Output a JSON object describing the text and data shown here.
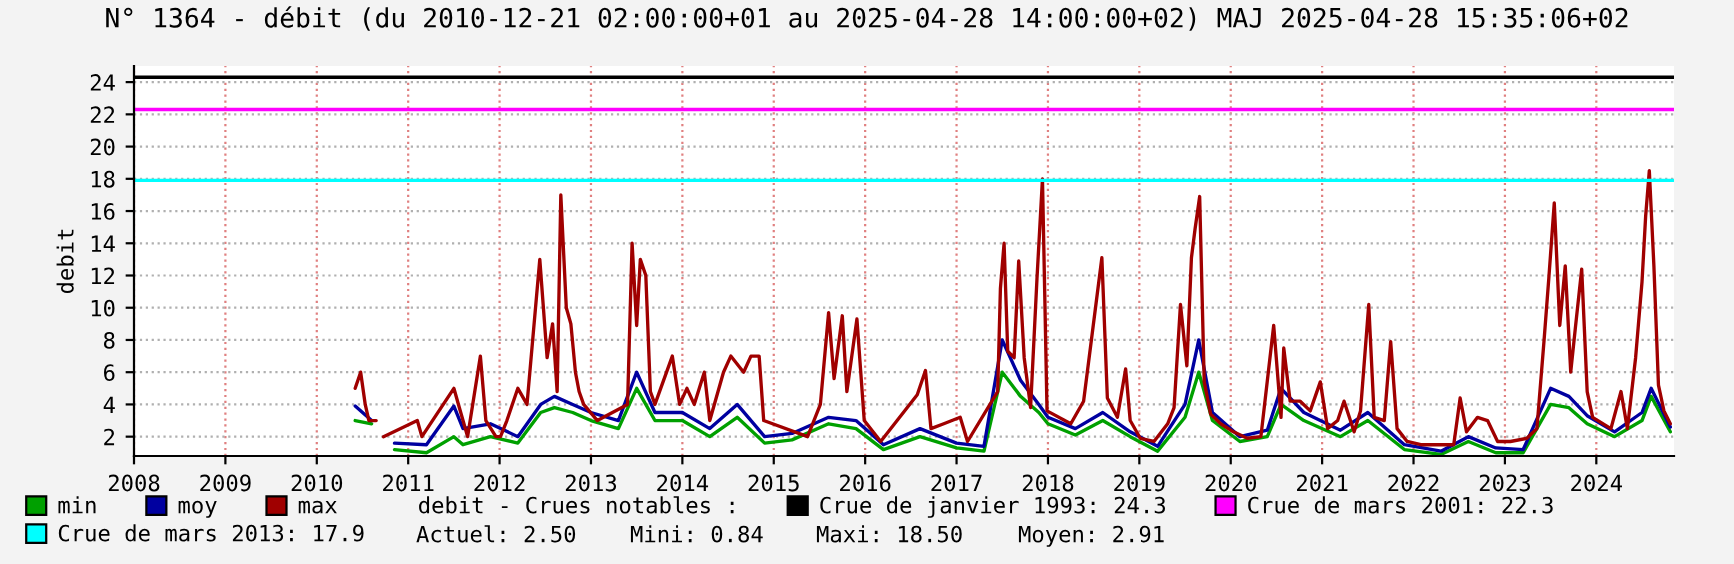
{
  "chart_data": {
    "type": "line",
    "title": "N° 1364 - débit (du 2010-12-21 02:00:00+01 au 2025-04-28 14:00:00+02) MAJ 2025-04-28 15:35:06+02",
    "ylabel": "debit",
    "legend_title": "debit - Crues notables :",
    "xlim": [
      2008,
      2024.85
    ],
    "xticks": [
      2008,
      2009,
      2010,
      2011,
      2012,
      2013,
      2014,
      2015,
      2016,
      2017,
      2018,
      2019,
      2020,
      2021,
      2022,
      2023,
      2024
    ],
    "ylim": [
      0.8,
      25
    ],
    "yticks": [
      2,
      4,
      6,
      8,
      10,
      12,
      14,
      16,
      18,
      20,
      22,
      24
    ],
    "grid": true,
    "legend": "bottom",
    "marker": "none",
    "line_style": "solid",
    "series": [
      {
        "name": "min",
        "color": "#00a000",
        "x": [
          2010.42,
          2010.6,
          2010.7,
          2010.85,
          2011.2,
          2011.5,
          2011.6,
          2011.9,
          2012.2,
          2012.45,
          2012.6,
          2012.8,
          2013.0,
          2013.3,
          2013.5,
          2013.7,
          2014.0,
          2014.3,
          2014.6,
          2014.9,
          2015.2,
          2015.6,
          2015.9,
          2016.2,
          2016.6,
          2017.0,
          2017.3,
          2017.5,
          2017.7,
          2017.9,
          2018.0,
          2018.3,
          2018.6,
          2018.9,
          2019.2,
          2019.5,
          2019.65,
          2019.8,
          2020.1,
          2020.4,
          2020.55,
          2020.8,
          2021.2,
          2021.5,
          2021.9,
          2022.3,
          2022.6,
          2022.9,
          2023.2,
          2023.5,
          2023.7,
          2023.9,
          2024.2,
          2024.5,
          2024.6,
          2024.81
        ],
        "values": [
          3.0,
          2.8,
          null,
          1.2,
          1.0,
          2.0,
          1.5,
          2.0,
          1.6,
          3.5,
          3.8,
          3.5,
          3.0,
          2.5,
          5.0,
          3.0,
          3.0,
          2.0,
          3.2,
          1.6,
          1.8,
          2.8,
          2.5,
          1.2,
          2.0,
          1.3,
          1.1,
          6.0,
          4.5,
          3.5,
          2.8,
          2.1,
          3.0,
          2.0,
          1.1,
          3.2,
          6.0,
          3.0,
          1.7,
          2.0,
          4.0,
          3.0,
          2.0,
          3.0,
          1.2,
          0.9,
          1.7,
          1.0,
          1.0,
          4.0,
          3.8,
          2.8,
          2.0,
          3.0,
          4.5,
          2.3
        ]
      },
      {
        "name": "moy",
        "color": "#0000a0",
        "x": [
          2010.42,
          2010.6,
          2010.7,
          2010.85,
          2011.2,
          2011.5,
          2011.6,
          2011.9,
          2012.2,
          2012.45,
          2012.6,
          2012.8,
          2013.0,
          2013.3,
          2013.5,
          2013.7,
          2014.0,
          2014.3,
          2014.6,
          2014.9,
          2015.2,
          2015.6,
          2015.9,
          2016.2,
          2016.6,
          2017.0,
          2017.3,
          2017.5,
          2017.7,
          2017.9,
          2018.0,
          2018.3,
          2018.6,
          2018.9,
          2019.2,
          2019.5,
          2019.65,
          2019.8,
          2020.1,
          2020.4,
          2020.55,
          2020.8,
          2021.2,
          2021.5,
          2021.9,
          2022.3,
          2022.6,
          2022.9,
          2023.2,
          2023.5,
          2023.7,
          2023.9,
          2024.2,
          2024.5,
          2024.6,
          2024.81
        ],
        "values": [
          3.9,
          3.0,
          null,
          1.6,
          1.5,
          3.9,
          2.5,
          2.8,
          2.0,
          4.0,
          4.5,
          4.0,
          3.5,
          3.0,
          6.0,
          3.5,
          3.5,
          2.5,
          4.0,
          2.0,
          2.2,
          3.2,
          3.0,
          1.5,
          2.5,
          1.6,
          1.4,
          8.0,
          5.5,
          4.0,
          3.2,
          2.5,
          3.5,
          2.3,
          1.4,
          4.0,
          8.0,
          3.5,
          2.0,
          2.4,
          5.0,
          3.5,
          2.4,
          3.5,
          1.5,
          1.1,
          2.0,
          1.3,
          1.2,
          5.0,
          4.5,
          3.3,
          2.3,
          3.5,
          5.0,
          2.6
        ]
      },
      {
        "name": "max",
        "color": "#a00000",
        "x": [
          2010.42,
          2010.48,
          2010.53,
          2010.57,
          2010.65,
          2010.7,
          2010.73,
          2011.1,
          2011.15,
          2011.5,
          2011.55,
          2011.6,
          2011.65,
          2011.79,
          2011.85,
          2011.96,
          2012.01,
          2012.08,
          2012.2,
          2012.3,
          2012.44,
          2012.52,
          2012.58,
          2012.63,
          2012.67,
          2012.73,
          2012.78,
          2012.83,
          2012.87,
          2012.92,
          2013.07,
          2013.4,
          2013.45,
          2013.5,
          2013.54,
          2013.6,
          2013.65,
          2013.7,
          2013.89,
          2013.97,
          2014.05,
          2014.13,
          2014.24,
          2014.3,
          2014.45,
          2014.53,
          2014.67,
          2014.75,
          2014.84,
          2014.89,
          2015.37,
          2015.51,
          2015.6,
          2015.66,
          2015.75,
          2015.8,
          2015.91,
          2015.99,
          2016.17,
          2016.57,
          2016.66,
          2016.72,
          2016.86,
          2017.04,
          2017.12,
          2017.45,
          2017.48,
          2017.52,
          2017.56,
          2017.63,
          2017.68,
          2017.74,
          2017.81,
          2017.88,
          2017.94,
          2017.99,
          2018.25,
          2018.39,
          2018.59,
          2018.65,
          2018.76,
          2018.85,
          2018.9,
          2019.01,
          2019.16,
          2019.31,
          2019.38,
          2019.45,
          2019.52,
          2019.57,
          2019.61,
          2019.66,
          2019.71,
          2019.78,
          2019.89,
          2020.03,
          2020.18,
          2020.33,
          2020.47,
          2020.55,
          2020.58,
          2020.65,
          2020.76,
          2020.87,
          2020.98,
          2021.06,
          2021.17,
          2021.24,
          2021.35,
          2021.42,
          2021.51,
          2021.57,
          2021.68,
          2021.75,
          2021.82,
          2021.93,
          2022.08,
          2022.44,
          2022.51,
          2022.58,
          2022.7,
          2022.81,
          2022.92,
          2023.06,
          2023.24,
          2023.35,
          2023.43,
          2023.48,
          2023.54,
          2023.6,
          2023.66,
          2023.72,
          2023.77,
          2023.84,
          2023.9,
          2023.96,
          2024.16,
          2024.27,
          2024.34,
          2024.43,
          2024.5,
          2024.54,
          2024.58,
          2024.63,
          2024.68,
          2024.74,
          2024.81
        ],
        "values": [
          5.0,
          6.0,
          4.0,
          3.0,
          3.0,
          null,
          2.0,
          3.0,
          2.0,
          5.0,
          4.0,
          3.0,
          2.0,
          7.0,
          3.0,
          2.0,
          2.0,
          3.0,
          5.0,
          4.0,
          13.0,
          6.9,
          9.0,
          4.8,
          17.0,
          10.0,
          9.0,
          6.0,
          4.8,
          4.0,
          3.0,
          4.0,
          14.0,
          8.9,
          13.0,
          12.0,
          4.8,
          4.0,
          7.0,
          4.0,
          5.0,
          4.0,
          6.0,
          3.0,
          6.0,
          7.0,
          6.0,
          7.0,
          7.0,
          3.0,
          2.0,
          4.0,
          9.7,
          5.6,
          9.5,
          4.8,
          9.3,
          3.0,
          1.7,
          4.6,
          6.1,
          2.5,
          2.8,
          3.2,
          1.7,
          4.8,
          11.2,
          14.0,
          7.3,
          6.9,
          12.9,
          6.9,
          3.8,
          11.8,
          18.0,
          3.6,
          2.8,
          4.2,
          13.1,
          4.4,
          3.2,
          6.2,
          3.0,
          1.9,
          1.7,
          2.8,
          3.8,
          10.2,
          6.4,
          13.1,
          14.9,
          16.9,
          5.4,
          3.4,
          2.8,
          2.3,
          1.9,
          2.0,
          8.9,
          3.2,
          7.5,
          4.2,
          4.2,
          3.6,
          5.4,
          2.5,
          3.0,
          4.2,
          2.3,
          3.6,
          10.2,
          3.2,
          3.0,
          7.9,
          2.5,
          1.7,
          1.5,
          1.5,
          4.4,
          2.3,
          3.2,
          3.0,
          1.7,
          1.7,
          1.9,
          2.5,
          8.1,
          11.8,
          16.5,
          8.9,
          12.6,
          6.0,
          8.7,
          12.4,
          4.8,
          3.2,
          2.5,
          4.8,
          2.5,
          6.9,
          11.6,
          15.7,
          18.5,
          12.6,
          5.2,
          3.6,
          2.8
        ]
      }
    ],
    "ref_lines": [
      {
        "axis": "y",
        "value": 24.3,
        "label": "Crue de janvier 1993: 24.3",
        "color": "#000000"
      },
      {
        "axis": "y",
        "value": 22.3,
        "label": "Crue de mars 2001: 22.3",
        "color": "#ff00ff"
      },
      {
        "axis": "y",
        "value": 17.9,
        "label": "Crue de mars 2013: 17.9",
        "color": "#00ffff"
      }
    ],
    "annotations": [
      "Actuel: 2.50",
      "Mini: 0.84",
      "Maxi: 18.50",
      "Moyen: 2.91"
    ]
  }
}
